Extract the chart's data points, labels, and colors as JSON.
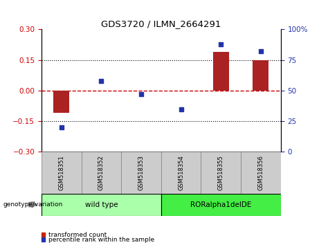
{
  "title": "GDS3720 / ILMN_2664291",
  "categories": [
    "GSM518351",
    "GSM518352",
    "GSM518353",
    "GSM518354",
    "GSM518355",
    "GSM518356"
  ],
  "bar_values": [
    -0.11,
    0.0,
    0.0,
    0.0,
    0.19,
    0.15
  ],
  "scatter_values": [
    20,
    58,
    47,
    35,
    88,
    82
  ],
  "ylim_left": [
    -0.3,
    0.3
  ],
  "ylim_right": [
    0,
    100
  ],
  "yticks_left": [
    -0.3,
    -0.15,
    0,
    0.15,
    0.3
  ],
  "yticks_right": [
    0,
    25,
    50,
    75,
    100
  ],
  "bar_color": "#aa2222",
  "scatter_color": "#2233aa",
  "hline_color": "#cc0000",
  "group_labels": [
    "wild type",
    "RORalpha1delDE"
  ],
  "group_wild_span": [
    0,
    3
  ],
  "group_ror_span": [
    3,
    6
  ],
  "group_wild_color": "#aaffaa",
  "group_ror_color": "#44ee44",
  "genotype_label": "genotype/variation",
  "legend_items": [
    "transformed count",
    "percentile rank within the sample"
  ],
  "legend_colors": [
    "#cc2200",
    "#2233aa"
  ],
  "background_color": "#ffffff",
  "label_box_color": "#cccccc",
  "bar_width": 0.4
}
